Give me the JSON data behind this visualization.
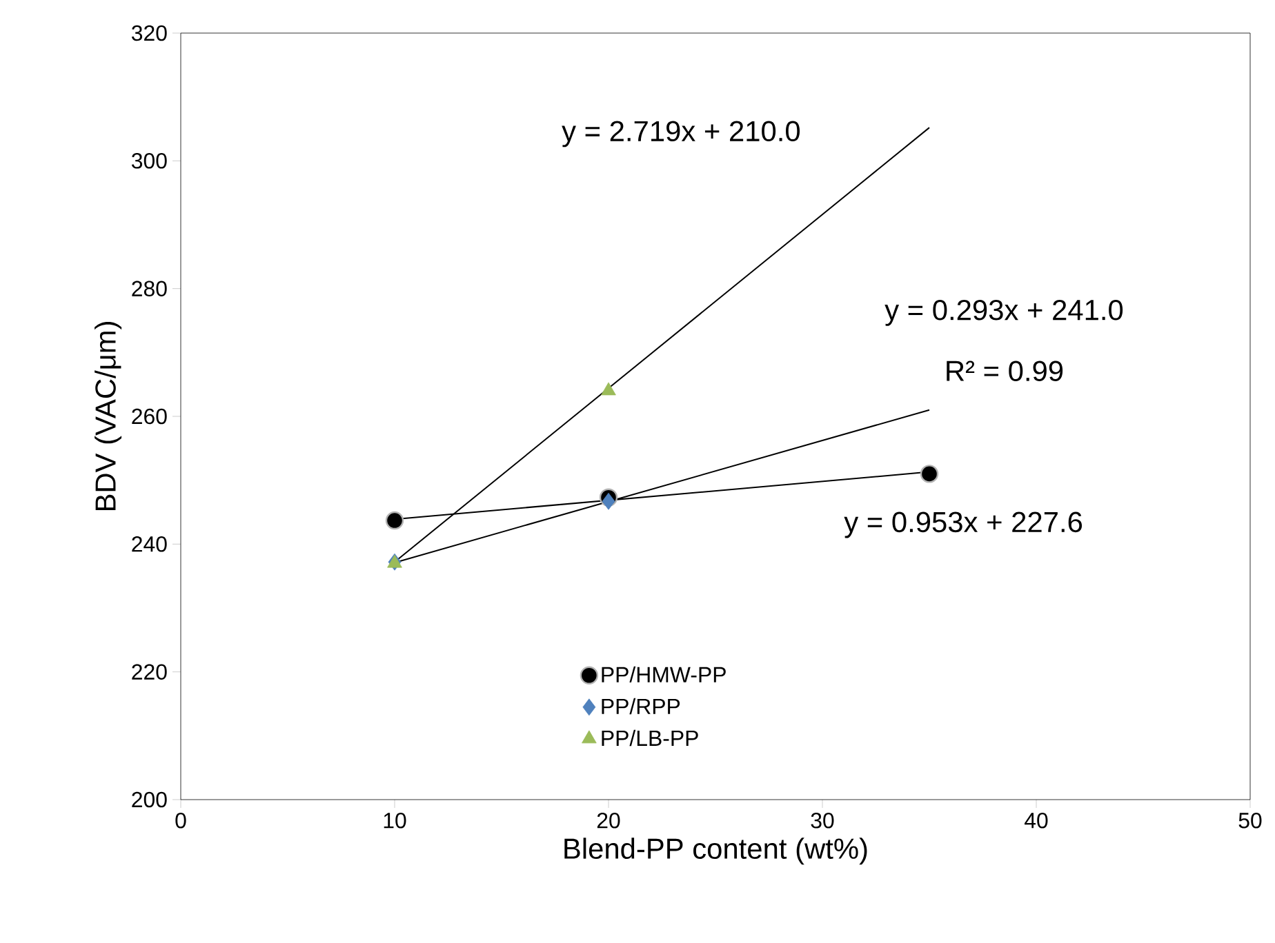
{
  "chart_data": {
    "type": "scatter",
    "xlabel": "Blend-PP content (wt%)",
    "ylabel": "BDV (VAC/μm)",
    "xlim": [
      0,
      50
    ],
    "xticks": [
      0,
      10,
      20,
      30,
      40,
      50
    ],
    "ylim": [
      200,
      320
    ],
    "yticks": [
      200,
      220,
      240,
      260,
      280,
      300,
      320
    ],
    "grid": false,
    "legend": "bottom",
    "series": [
      {
        "name": "PP/HMW-PP",
        "color": "#000000",
        "marker": "circle",
        "x": [
          10,
          20,
          35
        ],
        "values": [
          243.7,
          247.3,
          251.0
        ]
      },
      {
        "name": "PP/RPP",
        "color": "#4f81bd",
        "marker": "diamond",
        "x": [
          10,
          20
        ],
        "values": [
          237.2,
          246.7
        ]
      },
      {
        "name": "PP/LB-PP",
        "color": "#9bbb59",
        "marker": "triangle",
        "x": [
          10,
          20
        ],
        "values": [
          237.0,
          264.0
        ]
      },
      {
        "type": "line",
        "color": "#000000",
        "marker": "none",
        "line_style": "solid",
        "x": [
          10,
          35
        ],
        "values": [
          237.2,
          305.2
        ]
      },
      {
        "type": "line",
        "color": "#000000",
        "marker": "none",
        "line_style": "solid",
        "x": [
          10,
          35
        ],
        "values": [
          237.1,
          261.0
        ]
      },
      {
        "type": "line",
        "color": "#000000",
        "marker": "none",
        "line_style": "solid",
        "x": [
          10,
          35
        ],
        "values": [
          243.9,
          251.3
        ]
      }
    ],
    "annotations": [
      "y = 2.719x + 210.0",
      "y = 0.293x + 241.0",
      "R² = 0.99",
      "y = 0.953x + 227.6"
    ]
  }
}
